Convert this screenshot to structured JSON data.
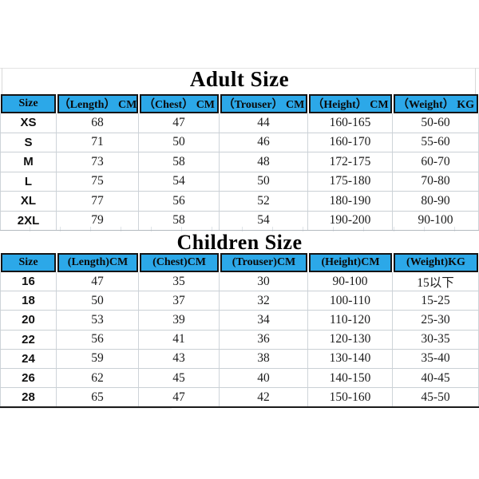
{
  "page": {
    "background": "#ffffff",
    "description": "Apparel size chart image with adult and children size tables"
  },
  "colors": {
    "header_bg": "#2ca8e8",
    "header_border": "#141414",
    "grid_line": "#cad0d5",
    "body_text": "#1b1b1b",
    "title_text": "#000000"
  },
  "column_keys": [
    "size",
    "length",
    "chest",
    "trouser",
    "height",
    "weight"
  ],
  "adult": {
    "title": "Adult Size",
    "columns": [
      "Size",
      "（Length） CM",
      "（Chest） CM",
      "（Trouser） CM",
      "（Height） CM",
      "（Weight） KG"
    ],
    "rows": [
      [
        "XS",
        "68",
        "47",
        "44",
        "160-165",
        "50-60"
      ],
      [
        "S",
        "71",
        "50",
        "46",
        "160-170",
        "55-60"
      ],
      [
        "M",
        "73",
        "58",
        "48",
        "172-175",
        "60-70"
      ],
      [
        "L",
        "75",
        "54",
        "50",
        "175-180",
        "70-80"
      ],
      [
        "XL",
        "77",
        "56",
        "52",
        "180-190",
        "80-90"
      ],
      [
        "2XL",
        "79",
        "58",
        "54",
        "190-200",
        "90-100"
      ]
    ]
  },
  "children": {
    "title": "Children Size",
    "columns": [
      "Size",
      "(Length)CM",
      "(Chest)CM",
      "(Trouser)CM",
      "(Height)CM",
      "(Weight)KG"
    ],
    "rows": [
      [
        "16",
        "47",
        "35",
        "30",
        "90-100",
        "15以下"
      ],
      [
        "18",
        "50",
        "37",
        "32",
        "100-110",
        "15-25"
      ],
      [
        "20",
        "53",
        "39",
        "34",
        "110-120",
        "25-30"
      ],
      [
        "22",
        "56",
        "41",
        "36",
        "120-130",
        "30-35"
      ],
      [
        "24",
        "59",
        "43",
        "38",
        "130-140",
        "35-40"
      ],
      [
        "26",
        "62",
        "45",
        "40",
        "140-150",
        "40-45"
      ],
      [
        "28",
        "65",
        "47",
        "42",
        "150-160",
        "45-50"
      ]
    ]
  }
}
